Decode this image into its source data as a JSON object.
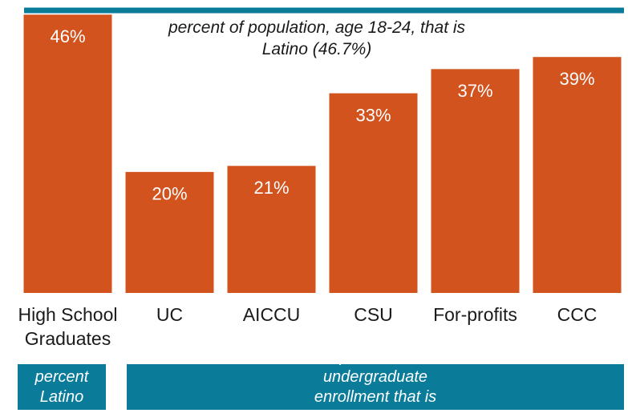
{
  "chart_data": {
    "type": "bar",
    "categories": [
      "High School Graduates",
      "UC",
      "AICCU",
      "CSU",
      "For-profits",
      "CCC"
    ],
    "values": [
      46,
      20,
      21,
      33,
      37,
      39
    ],
    "value_labels": [
      "46%",
      "20%",
      "21%",
      "33%",
      "37%",
      "39%"
    ],
    "color": "#d3531f",
    "ylim": [
      0,
      46.7
    ],
    "reference_line": {
      "value": 46.7,
      "label": "percent of population, age 18-24, that is Latino (46.7%)",
      "color": "#0b7b9a"
    },
    "group_labels": [
      "percent Latino",
      "percent of undergraduate enrollment that is Latino"
    ],
    "group_color": "#0b7b9a"
  }
}
